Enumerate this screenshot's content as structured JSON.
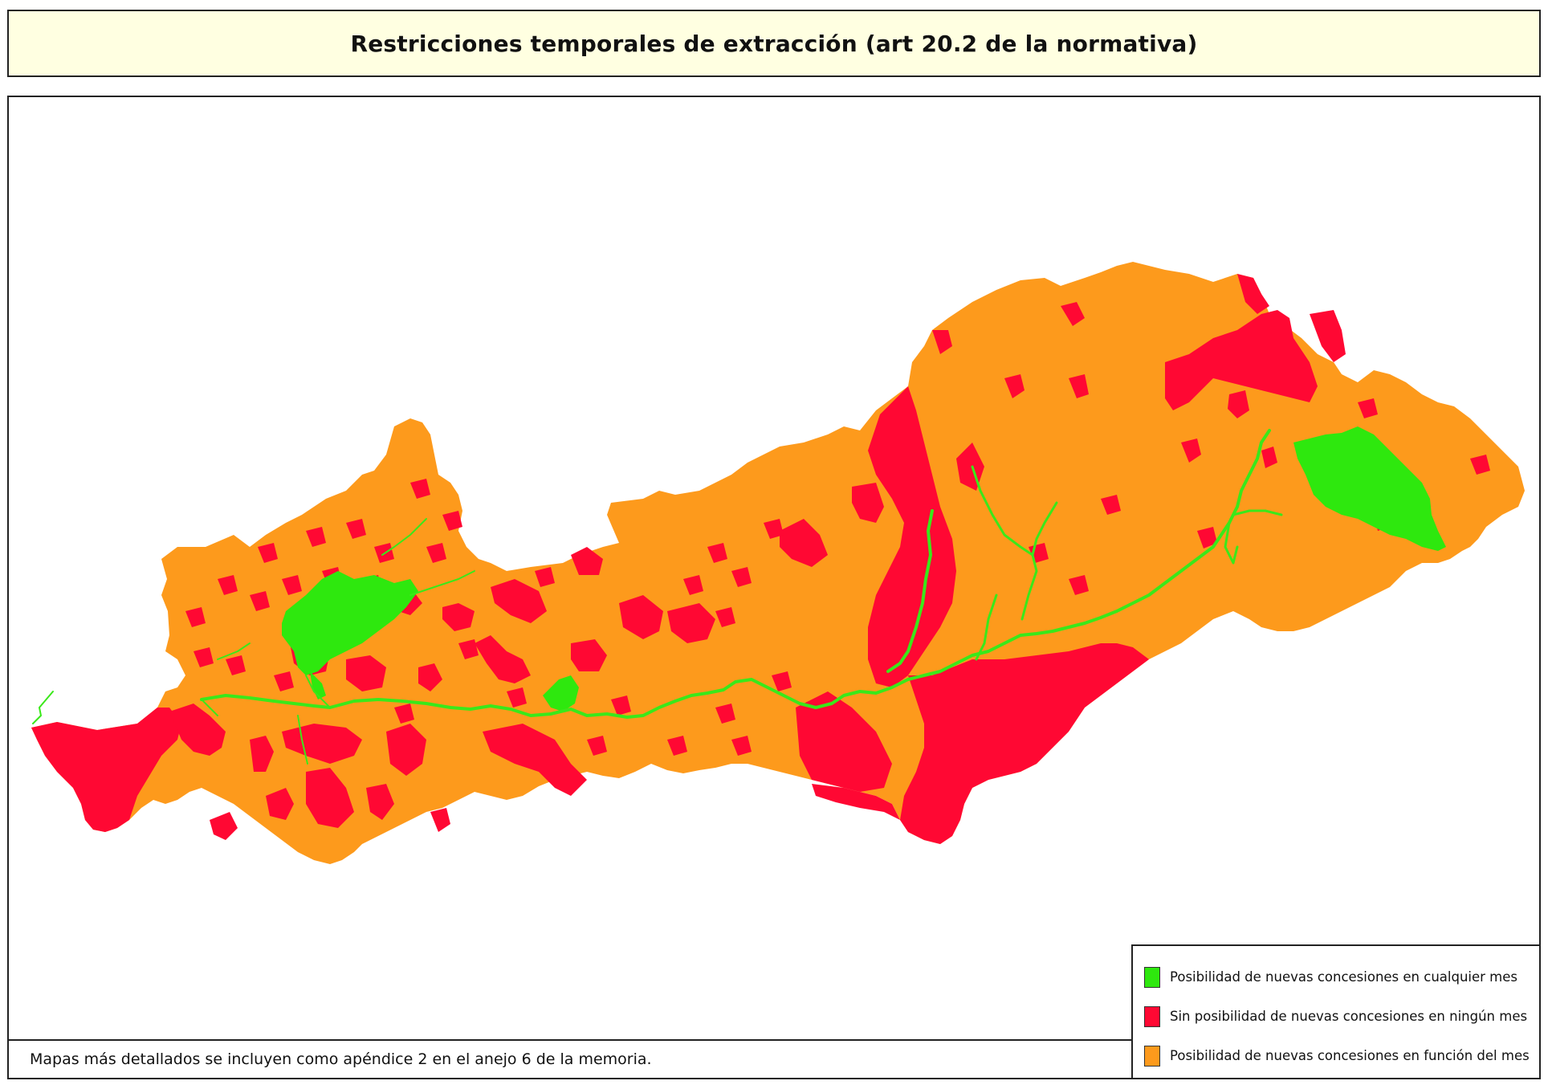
{
  "title": "Restricciones temporales de extracción (art 20.2 de la normativa)",
  "note": "Mapas más detallados se incluyen como apéndice 2 en el anejo 6 de la memoria.",
  "colors": {
    "green": "#2ee80e",
    "red": "#ff0833",
    "orange": "#fd9a1c",
    "river": "#3ae81a",
    "title_bg": "#ffffe1"
  },
  "legend": {
    "items": [
      {
        "label": "Posibilidad de nuevas concesiones en cualquier mes",
        "color": "#2ee80e"
      },
      {
        "label": "Sin posibilidad de nuevas concesiones en ningún mes",
        "color": "#ff0833"
      },
      {
        "label": "Posibilidad de nuevas concesiones en función del mes",
        "color": "#fd9a1c"
      }
    ]
  }
}
